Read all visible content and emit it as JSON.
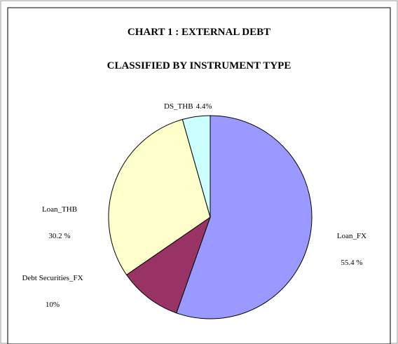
{
  "chart_data": {
    "type": "pie",
    "title": "CHART 1 : EXTERNAL DEBT",
    "subtitle": "CLASSIFIED BY INSTRUMENT TYPE",
    "categories": [
      "Loan_FX",
      "Debt Securities_FX",
      "Loan_THB",
      "DS_THB"
    ],
    "values": [
      55.4,
      10,
      30.2,
      4.4
    ],
    "value_labels": [
      "55.4 %",
      "10%",
      "30.2 %",
      "4.4%"
    ],
    "colors": [
      "#9999ff",
      "#993366",
      "#ffffcc",
      "#ccffff"
    ]
  }
}
